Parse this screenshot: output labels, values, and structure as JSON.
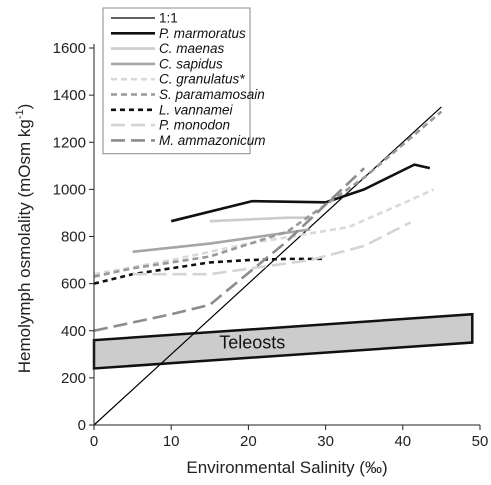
{
  "chart_data": {
    "type": "line",
    "title": "",
    "xlabel": "Environmental Salinity (‰)",
    "ylabel_main": "Hemolymph osmolality (mOsm kg",
    "ylabel_sup": "-1",
    "ylabel_close": ")",
    "xlim": [
      0,
      50
    ],
    "ylim": [
      0,
      1600
    ],
    "xticks": [
      0,
      10,
      20,
      30,
      40,
      50
    ],
    "yticks": [
      0,
      200,
      400,
      600,
      800,
      1000,
      1200,
      1400,
      1600
    ],
    "grid": false,
    "legend_position": "top-left",
    "series": [
      {
        "name": "1:1",
        "italic": false,
        "color": "#000000",
        "width": 1.2,
        "dash": "",
        "points": [
          [
            0,
            0
          ],
          [
            45,
            1350
          ]
        ]
      },
      {
        "name": "P. marmoratus",
        "italic": true,
        "color": "#111111",
        "width": 2.6,
        "dash": "",
        "points": [
          [
            10,
            865
          ],
          [
            20.5,
            950
          ],
          [
            30,
            945
          ],
          [
            35,
            1000
          ],
          [
            41.5,
            1105
          ],
          [
            43.5,
            1090
          ]
        ]
      },
      {
        "name": "C. maenas",
        "italic": true,
        "color": "#cccccc",
        "width": 2.6,
        "dash": "",
        "points": [
          [
            15,
            865
          ],
          [
            25,
            880
          ],
          [
            28,
            880
          ]
        ]
      },
      {
        "name": "C. sapidus",
        "italic": true,
        "color": "#a6a6a6",
        "width": 2.6,
        "dash": "",
        "points": [
          [
            5,
            735
          ],
          [
            15,
            770
          ],
          [
            28,
            830
          ]
        ]
      },
      {
        "name": "C. granulatus*",
        "italic": true,
        "color": "#d9d9d9",
        "width": 2.6,
        "dash": "6,4",
        "points": [
          [
            0,
            640
          ],
          [
            10,
            700
          ],
          [
            20,
            770
          ],
          [
            33,
            840
          ],
          [
            40,
            940
          ],
          [
            44,
            1000
          ]
        ]
      },
      {
        "name": "S. paramamosain",
        "italic": true,
        "color": "#999999",
        "width": 2.6,
        "dash": "6,4",
        "points": [
          [
            0,
            630
          ],
          [
            5,
            665
          ],
          [
            15,
            715
          ],
          [
            25,
            820
          ],
          [
            35,
            1050
          ],
          [
            45,
            1330
          ]
        ]
      },
      {
        "name": "L. vannamei",
        "italic": true,
        "color": "#111111",
        "width": 2.6,
        "dash": "5,4",
        "points": [
          [
            0,
            600
          ],
          [
            5,
            640
          ],
          [
            10,
            665
          ],
          [
            15,
            690
          ],
          [
            20,
            700
          ],
          [
            25,
            705
          ],
          [
            30,
            705
          ]
        ]
      },
      {
        "name": "P. monodon",
        "italic": true,
        "color": "#d4d4d4",
        "width": 2.6,
        "dash": "14,6",
        "points": [
          [
            5,
            640
          ],
          [
            15,
            640
          ],
          [
            28,
            700
          ],
          [
            35,
            760
          ],
          [
            41,
            860
          ]
        ]
      },
      {
        "name": "M. ammazonicum",
        "italic": true,
        "color": "#8c8c8c",
        "width": 2.6,
        "dash": "14,6",
        "points": [
          [
            0,
            400
          ],
          [
            10,
            470
          ],
          [
            15,
            510
          ],
          [
            25,
            780
          ],
          [
            35,
            1090
          ]
        ]
      }
    ],
    "band": {
      "label": "Teleosts",
      "color": "#cccccc",
      "corners": [
        [
          0,
          240
        ],
        [
          0,
          360
        ],
        [
          49,
          470
        ],
        [
          49,
          350
        ]
      ]
    }
  }
}
